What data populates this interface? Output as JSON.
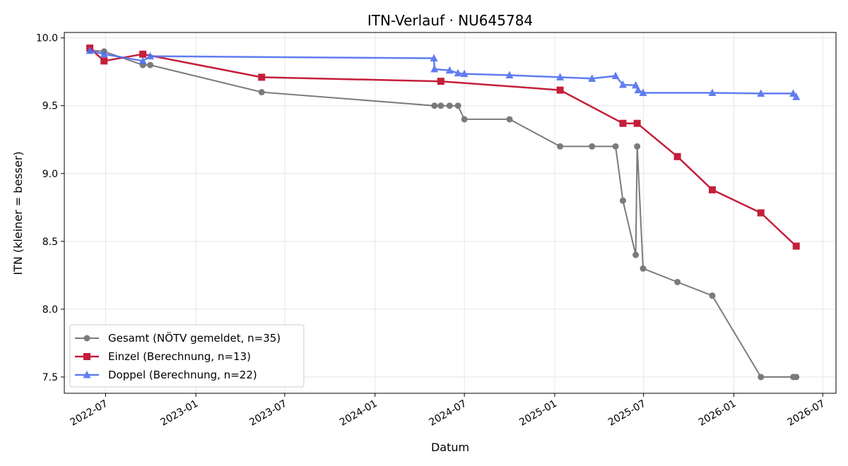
{
  "chart_data": {
    "type": "line",
    "title": "ITN-Verlauf · NU645784",
    "xlabel": "Datum",
    "ylabel": "ITN  (kleiner = besser)",
    "xlim": [
      "2022-04-08",
      "2026-07-28"
    ],
    "ylim": [
      7.38,
      10.04
    ],
    "x_ticks": [
      "2022-07-01",
      "2023-01-01",
      "2023-07-01",
      "2024-01-01",
      "2024-07-01",
      "2025-01-01",
      "2025-07-01",
      "2026-01-01",
      "2026-07-01"
    ],
    "x_tick_labels": [
      "2022-07",
      "2023-01",
      "2023-07",
      "2024-01",
      "2024-07",
      "2025-01",
      "2025-07",
      "2026-01",
      "2026-07"
    ],
    "y_ticks": [
      7.5,
      8.0,
      8.5,
      9.0,
      9.5,
      10.0
    ],
    "y_tick_labels": [
      "7.5",
      "8.0",
      "8.5",
      "9.0",
      "9.5",
      "10.0"
    ],
    "grid": true,
    "legend_position": "lower-left",
    "series": [
      {
        "name": "Gesamt (NÖTV gemeldet, n=35)",
        "color": "#444444",
        "marker": "circle",
        "points": [
          {
            "x": "2022-05-30",
            "y": 9.92
          },
          {
            "x": "2022-05-30",
            "y": 9.91
          },
          {
            "x": "2022-06-28",
            "y": 9.9
          },
          {
            "x": "2022-09-15",
            "y": 9.8
          },
          {
            "x": "2022-09-30",
            "y": 9.8
          },
          {
            "x": "2023-05-15",
            "y": 9.6
          },
          {
            "x": "2024-05-01",
            "y": 9.5
          },
          {
            "x": "2024-05-14",
            "y": 9.5
          },
          {
            "x": "2024-06-01",
            "y": 9.5
          },
          {
            "x": "2024-06-18",
            "y": 9.5
          },
          {
            "x": "2024-07-01",
            "y": 9.4
          },
          {
            "x": "2024-10-01",
            "y": 9.4
          },
          {
            "x": "2025-01-12",
            "y": 9.2
          },
          {
            "x": "2025-03-18",
            "y": 9.2
          },
          {
            "x": "2025-05-05",
            "y": 9.2
          },
          {
            "x": "2025-05-20",
            "y": 8.8
          },
          {
            "x": "2025-06-15",
            "y": 8.4
          },
          {
            "x": "2025-06-18",
            "y": 9.2
          },
          {
            "x": "2025-06-30",
            "y": 8.3
          },
          {
            "x": "2025-09-08",
            "y": 8.2
          },
          {
            "x": "2025-11-18",
            "y": 8.1
          },
          {
            "x": "2026-02-25",
            "y": 7.5
          },
          {
            "x": "2026-05-02",
            "y": 7.5
          },
          {
            "x": "2026-05-08",
            "y": 7.5
          }
        ]
      },
      {
        "name": "Einzel (Berechnung, n=13)",
        "color": "#c41e3a",
        "marker": "square",
        "points": [
          {
            "x": "2022-05-30",
            "y": 9.925
          },
          {
            "x": "2022-06-28",
            "y": 9.83
          },
          {
            "x": "2022-09-15",
            "y": 9.88
          },
          {
            "x": "2023-05-15",
            "y": 9.71
          },
          {
            "x": "2024-05-14",
            "y": 9.68
          },
          {
            "x": "2025-01-12",
            "y": 9.615
          },
          {
            "x": "2025-05-20",
            "y": 9.37
          },
          {
            "x": "2025-06-18",
            "y": 9.37
          },
          {
            "x": "2025-09-08",
            "y": 9.125
          },
          {
            "x": "2025-11-18",
            "y": 8.88
          },
          {
            "x": "2026-02-25",
            "y": 8.71
          },
          {
            "x": "2026-05-08",
            "y": 8.465
          }
        ]
      },
      {
        "name": "Doppel (Berechnung, n=22)",
        "color": "#4f6ff0",
        "marker": "triangle",
        "points": [
          {
            "x": "2022-05-30",
            "y": 9.905
          },
          {
            "x": "2022-06-28",
            "y": 9.88
          },
          {
            "x": "2022-09-15",
            "y": 9.83
          },
          {
            "x": "2022-09-30",
            "y": 9.865
          },
          {
            "x": "2024-04-30",
            "y": 9.85
          },
          {
            "x": "2024-05-01",
            "y": 9.77
          },
          {
            "x": "2024-06-01",
            "y": 9.76
          },
          {
            "x": "2024-06-18",
            "y": 9.74
          },
          {
            "x": "2024-07-01",
            "y": 9.735
          },
          {
            "x": "2024-10-01",
            "y": 9.725
          },
          {
            "x": "2025-01-12",
            "y": 9.71
          },
          {
            "x": "2025-03-18",
            "y": 9.7
          },
          {
            "x": "2025-05-05",
            "y": 9.72
          },
          {
            "x": "2025-05-20",
            "y": 9.655
          },
          {
            "x": "2025-06-15",
            "y": 9.65
          },
          {
            "x": "2025-06-20",
            "y": 9.615
          },
          {
            "x": "2025-06-30",
            "y": 9.595
          },
          {
            "x": "2025-11-18",
            "y": 9.595
          },
          {
            "x": "2026-02-25",
            "y": 9.59
          },
          {
            "x": "2026-05-02",
            "y": 9.59
          },
          {
            "x": "2026-05-08",
            "y": 9.565
          }
        ]
      }
    ]
  }
}
